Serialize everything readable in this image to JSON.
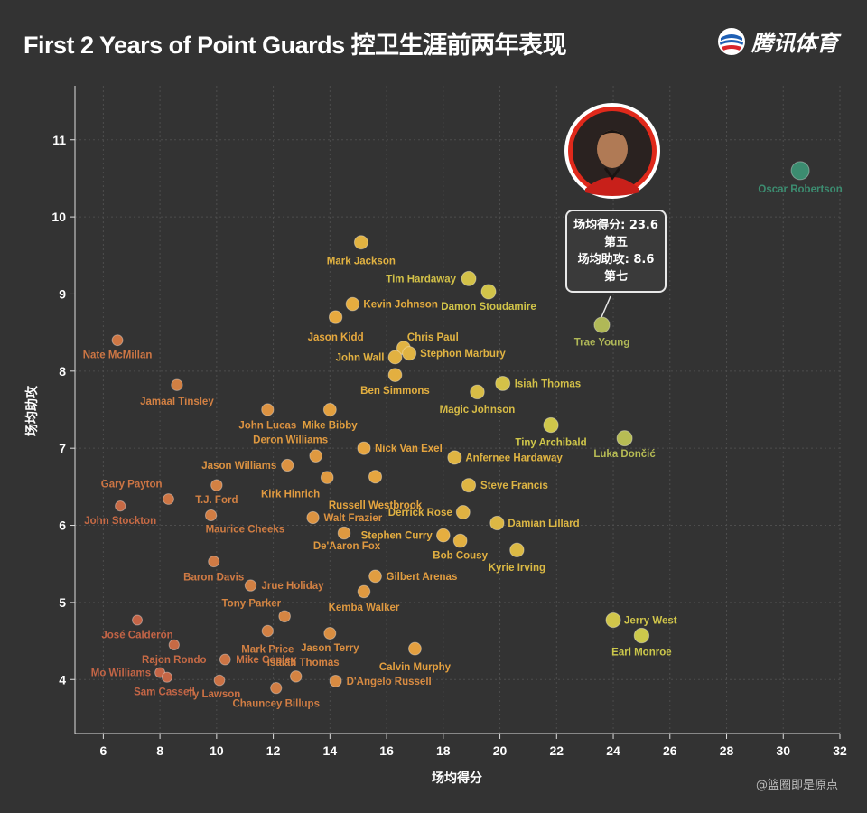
{
  "header": {
    "title": "First 2 Years of Point Guards 控卫生涯前两年表现",
    "brand": "腾讯体育",
    "credit": "@篮圈即是原点"
  },
  "tooltip": {
    "line1": "场均得分: 23.6",
    "line2": "第五",
    "line3": "场均助攻: 8.6",
    "line4": "第七"
  },
  "chart_data": {
    "type": "scatter",
    "title": "First 2 Years of Point Guards 控卫生涯前两年表现",
    "xlabel": "场均得分",
    "ylabel": "场均助攻",
    "xlim": [
      5,
      32
    ],
    "ylim": [
      3.3,
      11.7
    ],
    "xticks": [
      6,
      8,
      10,
      12,
      14,
      16,
      18,
      20,
      22,
      24,
      26,
      28,
      30,
      32
    ],
    "yticks": [
      4,
      5,
      6,
      7,
      8,
      9,
      10,
      11
    ],
    "grid": true,
    "color_scale": "points+assists: orange (low) to green (high)",
    "points": [
      {
        "name": "Oscar Robertson",
        "x": 30.6,
        "y": 10.6
      },
      {
        "name": "Mark Jackson",
        "x": 15.1,
        "y": 9.67
      },
      {
        "name": "Tim Hardaway",
        "x": 18.9,
        "y": 9.2
      },
      {
        "name": "Damon Stoudamire",
        "x": 19.6,
        "y": 9.03
      },
      {
        "name": "Kevin Johnson",
        "x": 14.8,
        "y": 8.87
      },
      {
        "name": "Jason Kidd",
        "x": 14.2,
        "y": 8.7
      },
      {
        "name": "Trae Young",
        "x": 23.6,
        "y": 8.6
      },
      {
        "name": "Nate McMillan",
        "x": 6.5,
        "y": 8.4
      },
      {
        "name": "Chris Paul",
        "x": 16.6,
        "y": 8.3
      },
      {
        "name": "Stephon Marbury",
        "x": 16.8,
        "y": 8.23
      },
      {
        "name": "John Wall",
        "x": 16.3,
        "y": 8.18
      },
      {
        "name": "Ben Simmons",
        "x": 16.3,
        "y": 7.95
      },
      {
        "name": "Isiah Thomas",
        "x": 20.1,
        "y": 7.84
      },
      {
        "name": "Jamaal Tinsley",
        "x": 8.6,
        "y": 7.82
      },
      {
        "name": "Magic Johnson",
        "x": 19.2,
        "y": 7.73
      },
      {
        "name": "John Lucas",
        "x": 11.8,
        "y": 7.5
      },
      {
        "name": "Mike Bibby",
        "x": 14.0,
        "y": 7.5
      },
      {
        "name": "Tiny Archibald",
        "x": 21.8,
        "y": 7.3
      },
      {
        "name": "Luka Dončić",
        "x": 24.4,
        "y": 7.13
      },
      {
        "name": "Nick Van Exel",
        "x": 15.2,
        "y": 7.0
      },
      {
        "name": "Deron Williams",
        "x": 13.5,
        "y": 6.9
      },
      {
        "name": "Anfernee Hardaway",
        "x": 18.4,
        "y": 6.88
      },
      {
        "name": "Jason Williams",
        "x": 12.5,
        "y": 6.78
      },
      {
        "name": "Kirk Hinrich",
        "x": 13.9,
        "y": 6.62
      },
      {
        "name": "Russell Westbrook",
        "x": 15.6,
        "y": 6.63
      },
      {
        "name": "Steve Francis",
        "x": 18.9,
        "y": 6.52
      },
      {
        "name": "T.J. Ford",
        "x": 10.0,
        "y": 6.52
      },
      {
        "name": "Gary Payton",
        "x": 8.3,
        "y": 6.34
      },
      {
        "name": "John Stockton",
        "x": 6.6,
        "y": 6.25
      },
      {
        "name": "Derrick Rose",
        "x": 18.7,
        "y": 6.17
      },
      {
        "name": "Maurice Cheeks",
        "x": 9.8,
        "y": 6.13
      },
      {
        "name": "Walt Frazier",
        "x": 13.4,
        "y": 6.1
      },
      {
        "name": "Damian Lillard",
        "x": 19.9,
        "y": 6.03
      },
      {
        "name": "De'Aaron Fox",
        "x": 14.5,
        "y": 5.9
      },
      {
        "name": "Stephen Curry",
        "x": 18.0,
        "y": 5.87
      },
      {
        "name": "Bob Cousy",
        "x": 18.6,
        "y": 5.8
      },
      {
        "name": "Kyrie Irving",
        "x": 20.6,
        "y": 5.68
      },
      {
        "name": "Baron Davis",
        "x": 9.9,
        "y": 5.53
      },
      {
        "name": "Gilbert Arenas",
        "x": 15.6,
        "y": 5.34
      },
      {
        "name": "Jrue Holiday",
        "x": 11.2,
        "y": 5.22
      },
      {
        "name": "Kemba Walker",
        "x": 15.2,
        "y": 5.14
      },
      {
        "name": "Tony Parker",
        "x": 12.4,
        "y": 4.82
      },
      {
        "name": "José Calderón",
        "x": 7.2,
        "y": 4.77
      },
      {
        "name": "Jerry West",
        "x": 24.0,
        "y": 4.77
      },
      {
        "name": "Mark Price",
        "x": 11.8,
        "y": 4.63
      },
      {
        "name": "Earl Monroe",
        "x": 25.0,
        "y": 4.57
      },
      {
        "name": "Jason Terry",
        "x": 14.0,
        "y": 4.6
      },
      {
        "name": "Rajon Rondo",
        "x": 8.5,
        "y": 4.45
      },
      {
        "name": "Calvin Murphy",
        "x": 17.0,
        "y": 4.4
      },
      {
        "name": "Mike Conley",
        "x": 10.3,
        "y": 4.26
      },
      {
        "name": "Isaiah Thomas",
        "x": 12.8,
        "y": 4.04
      },
      {
        "name": "Mo Williams",
        "x": 8.0,
        "y": 4.09
      },
      {
        "name": "Sam Cassell",
        "x": 8.25,
        "y": 4.03
      },
      {
        "name": "Ty Lawson",
        "x": 10.1,
        "y": 3.99
      },
      {
        "name": "D'Angelo Russell",
        "x": 14.2,
        "y": 3.98
      },
      {
        "name": "Chauncey Billups",
        "x": 12.1,
        "y": 3.89
      }
    ]
  }
}
